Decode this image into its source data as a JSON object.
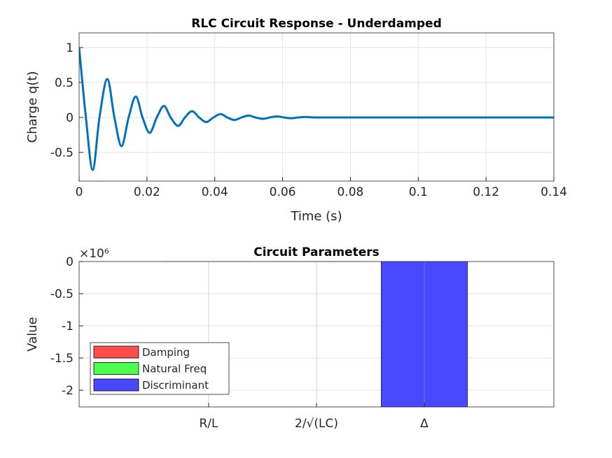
{
  "chart_data": [
    {
      "type": "line",
      "title": "RLC Circuit Response - Underdamped",
      "x_label": "Time (s)",
      "y_label": "Charge q(t)",
      "x": [
        0,
        0.002,
        0.004,
        0.006,
        0.0083,
        0.0104,
        0.0125,
        0.0146,
        0.0167,
        0.0187,
        0.0208,
        0.0229,
        0.025,
        0.027,
        0.0292,
        0.0312,
        0.0333,
        0.0354,
        0.0375,
        0.0396,
        0.0417,
        0.0437,
        0.0458,
        0.0479,
        0.05,
        0.052,
        0.0542,
        0.0562,
        0.0583,
        0.0604,
        0.0625,
        0.0646,
        0.0667,
        0.07,
        0.08,
        0.1,
        0.12,
        0.14
      ],
      "series": [
        {
          "name": "q(t)",
          "color": "#0072bd",
          "values": [
            1,
            0,
            -0.75,
            0,
            0.55,
            0,
            -0.41,
            0,
            0.3,
            0,
            -0.22,
            0,
            0.165,
            0,
            -0.12,
            0,
            0.09,
            0,
            -0.066,
            0,
            0.049,
            0,
            -0.036,
            0,
            0.027,
            0,
            -0.02,
            0,
            0.015,
            0,
            -0.011,
            0,
            0.008,
            0,
            0,
            0,
            0,
            0
          ]
        }
      ],
      "xlim": [
        0,
        0.14
      ],
      "xticks": [
        0,
        0.02,
        0.04,
        0.06,
        0.08,
        0.1,
        0.12,
        0.14
      ],
      "ylim": [
        -0.91,
        1.21
      ],
      "yticks": [
        -0.5,
        0,
        0.5,
        1
      ],
      "grid": true
    },
    {
      "type": "bar",
      "title": "Circuit Parameters",
      "y_label": "Value",
      "y_exponent_label": "×10⁶",
      "categories": [
        "R/L",
        "2/√(LC)",
        "Δ"
      ],
      "series": [
        {
          "name": "Damping",
          "color": "#ff4d4d",
          "values": [
            144,
            null,
            null
          ]
        },
        {
          "name": "Natural Freq",
          "color": "#4dff4d",
          "values": [
            null,
            1520,
            null
          ]
        },
        {
          "name": "Discriminant",
          "color": "#4848ff",
          "values": [
            null,
            null,
            -2290000
          ]
        }
      ],
      "ylim": [
        -2260000,
        0
      ],
      "yticks": [
        {
          "value": -2000000,
          "label": "-2"
        },
        {
          "value": -1500000,
          "label": "-1.5"
        },
        {
          "value": -1000000,
          "label": "-1"
        },
        {
          "value": -500000,
          "label": "-0.5"
        },
        0
      ],
      "grid": true,
      "legend": "lower left"
    }
  ]
}
